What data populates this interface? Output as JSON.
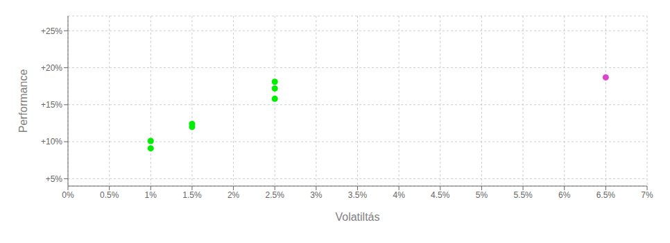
{
  "chart_data": {
    "type": "scatter",
    "xlabel": "Volatiltás",
    "ylabel": "Performance",
    "xlim": [
      0.0,
      0.07
    ],
    "ylim": [
      0.04,
      0.27
    ],
    "xticks": [
      {
        "value": 0.0,
        "label": "0%"
      },
      {
        "value": 0.005,
        "label": "0.5%"
      },
      {
        "value": 0.01,
        "label": "1%"
      },
      {
        "value": 0.015,
        "label": "1.5%"
      },
      {
        "value": 0.02,
        "label": "2%"
      },
      {
        "value": 0.025,
        "label": "2.5%"
      },
      {
        "value": 0.03,
        "label": "3%"
      },
      {
        "value": 0.035,
        "label": "3.5%"
      },
      {
        "value": 0.04,
        "label": "4%"
      },
      {
        "value": 0.045,
        "label": "4.5%"
      },
      {
        "value": 0.05,
        "label": "5%"
      },
      {
        "value": 0.055,
        "label": "5.5%"
      },
      {
        "value": 0.06,
        "label": "6%"
      },
      {
        "value": 0.065,
        "label": "6.5%"
      },
      {
        "value": 0.07,
        "label": "7%"
      }
    ],
    "yticks": [
      {
        "value": 0.05,
        "label": "+5%"
      },
      {
        "value": 0.1,
        "label": "+10%"
      },
      {
        "value": 0.15,
        "label": "+15%"
      },
      {
        "value": 0.2,
        "label": "+20%"
      },
      {
        "value": 0.25,
        "label": "+25%"
      }
    ],
    "grid": true,
    "series": [
      {
        "color": "#00ee00",
        "x": [
          0.01,
          0.01,
          0.015,
          0.015,
          0.025,
          0.025,
          0.025
        ],
        "values": [
          0.101,
          0.091,
          0.124,
          0.12,
          0.181,
          0.172,
          0.158
        ]
      },
      {
        "color": "#dd44cc",
        "x": [
          0.065
        ],
        "values": [
          0.187
        ]
      }
    ]
  }
}
